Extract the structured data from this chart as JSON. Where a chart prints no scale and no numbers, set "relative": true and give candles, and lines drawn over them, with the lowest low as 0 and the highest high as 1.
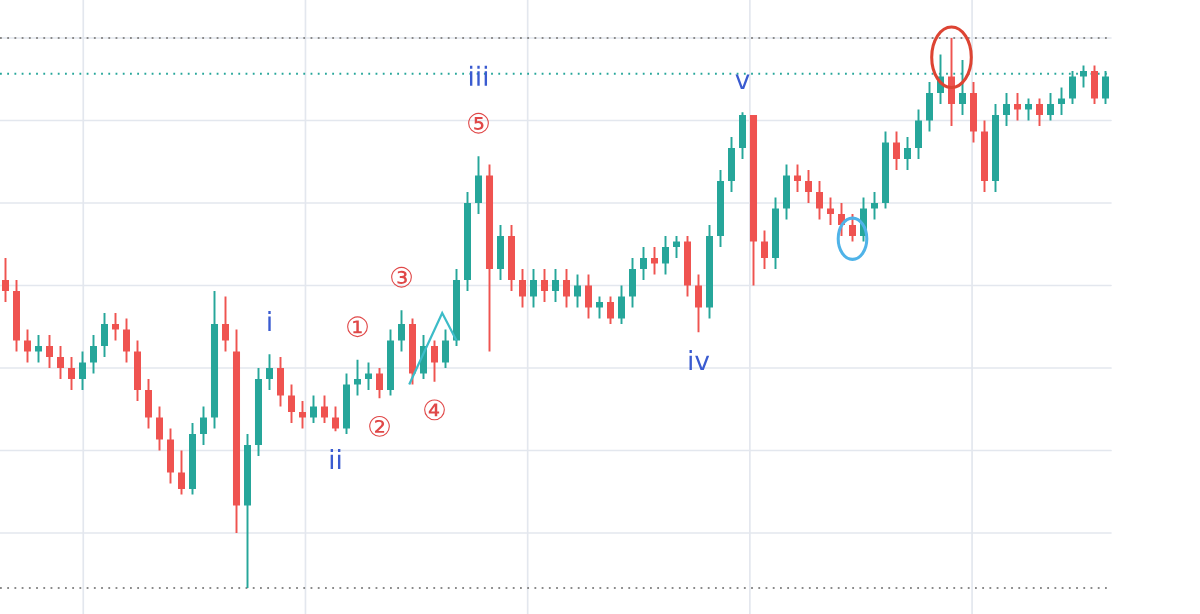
{
  "chart_data": {
    "type": "candlestick",
    "relative": true,
    "grid": true,
    "categories": [
      null,
      null,
      null,
      null,
      null,
      null,
      null,
      null,
      null,
      null,
      null,
      null,
      null,
      null,
      null,
      null,
      null,
      null,
      null,
      null,
      null,
      null,
      null,
      null,
      null,
      null,
      null,
      null,
      null,
      null,
      null,
      null,
      null,
      null,
      null,
      null,
      null,
      null,
      null,
      null,
      null,
      null,
      null,
      null,
      null,
      null,
      null,
      null,
      null,
      null,
      null,
      null,
      null,
      null,
      null,
      null,
      null,
      null,
      null,
      null,
      null,
      null,
      null,
      null,
      null,
      null,
      null,
      null,
      null,
      null,
      null,
      null,
      null,
      null,
      null,
      null,
      null,
      null,
      null,
      null,
      null,
      null,
      null,
      null,
      null,
      null,
      null,
      null,
      null,
      null,
      null,
      null,
      null,
      null,
      null,
      null,
      null,
      null,
      null,
      null,
      null
    ],
    "ohlc": [
      [
        0.56,
        0.6,
        0.52,
        0.54
      ],
      [
        0.54,
        0.56,
        0.43,
        0.45
      ],
      [
        0.45,
        0.47,
        0.41,
        0.43
      ],
      [
        0.43,
        0.46,
        0.41,
        0.44
      ],
      [
        0.44,
        0.46,
        0.4,
        0.42
      ],
      [
        0.42,
        0.44,
        0.38,
        0.4
      ],
      [
        0.4,
        0.42,
        0.36,
        0.38
      ],
      [
        0.38,
        0.43,
        0.36,
        0.41
      ],
      [
        0.41,
        0.46,
        0.39,
        0.44
      ],
      [
        0.44,
        0.5,
        0.42,
        0.48
      ],
      [
        0.48,
        0.5,
        0.45,
        0.47
      ],
      [
        0.47,
        0.49,
        0.41,
        0.43
      ],
      [
        0.43,
        0.45,
        0.34,
        0.36
      ],
      [
        0.36,
        0.38,
        0.29,
        0.31
      ],
      [
        0.31,
        0.33,
        0.25,
        0.27
      ],
      [
        0.27,
        0.29,
        0.19,
        0.21
      ],
      [
        0.21,
        0.25,
        0.17,
        0.18
      ],
      [
        0.18,
        0.3,
        0.17,
        0.28
      ],
      [
        0.28,
        0.33,
        0.26,
        0.31
      ],
      [
        0.31,
        0.54,
        0.29,
        0.48
      ],
      [
        0.48,
        0.53,
        0.43,
        0.45
      ],
      [
        0.43,
        0.47,
        0.1,
        0.15
      ],
      [
        0.15,
        0.28,
        0.0,
        0.26
      ],
      [
        0.26,
        0.4,
        0.24,
        0.38
      ],
      [
        0.38,
        0.425,
        0.36,
        0.4
      ],
      [
        0.4,
        0.42,
        0.33,
        0.35
      ],
      [
        0.35,
        0.37,
        0.3,
        0.32
      ],
      [
        0.32,
        0.34,
        0.29,
        0.31
      ],
      [
        0.31,
        0.35,
        0.3,
        0.33
      ],
      [
        0.33,
        0.35,
        0.3,
        0.31
      ],
      [
        0.31,
        0.33,
        0.285,
        0.29
      ],
      [
        0.29,
        0.39,
        0.28,
        0.37
      ],
      [
        0.37,
        0.415,
        0.35,
        0.38
      ],
      [
        0.38,
        0.41,
        0.36,
        0.39
      ],
      [
        0.39,
        0.4,
        0.345,
        0.36
      ],
      [
        0.36,
        0.47,
        0.35,
        0.45
      ],
      [
        0.45,
        0.505,
        0.43,
        0.48
      ],
      [
        0.48,
        0.49,
        0.37,
        0.39
      ],
      [
        0.39,
        0.46,
        0.38,
        0.44
      ],
      [
        0.44,
        0.45,
        0.375,
        0.41
      ],
      [
        0.41,
        0.47,
        0.4,
        0.45
      ],
      [
        0.45,
        0.58,
        0.44,
        0.56
      ],
      [
        0.56,
        0.72,
        0.54,
        0.7
      ],
      [
        0.7,
        0.785,
        0.68,
        0.75
      ],
      [
        0.75,
        0.77,
        0.43,
        0.58
      ],
      [
        0.58,
        0.66,
        0.56,
        0.64
      ],
      [
        0.64,
        0.66,
        0.54,
        0.56
      ],
      [
        0.56,
        0.58,
        0.51,
        0.53
      ],
      [
        0.53,
        0.58,
        0.51,
        0.56
      ],
      [
        0.56,
        0.58,
        0.52,
        0.54
      ],
      [
        0.54,
        0.58,
        0.52,
        0.56
      ],
      [
        0.56,
        0.58,
        0.51,
        0.53
      ],
      [
        0.53,
        0.57,
        0.51,
        0.55
      ],
      [
        0.55,
        0.57,
        0.49,
        0.51
      ],
      [
        0.51,
        0.53,
        0.49,
        0.52
      ],
      [
        0.52,
        0.53,
        0.48,
        0.49
      ],
      [
        0.49,
        0.55,
        0.48,
        0.53
      ],
      [
        0.53,
        0.6,
        0.51,
        0.58
      ],
      [
        0.58,
        0.62,
        0.56,
        0.6
      ],
      [
        0.6,
        0.62,
        0.57,
        0.59
      ],
      [
        0.59,
        0.64,
        0.57,
        0.62
      ],
      [
        0.62,
        0.64,
        0.6,
        0.63
      ],
      [
        0.63,
        0.64,
        0.53,
        0.55
      ],
      [
        0.55,
        0.57,
        0.465,
        0.51
      ],
      [
        0.51,
        0.66,
        0.49,
        0.64
      ],
      [
        0.64,
        0.76,
        0.62,
        0.74
      ],
      [
        0.74,
        0.82,
        0.72,
        0.8
      ],
      [
        0.8,
        0.865,
        0.78,
        0.86
      ],
      [
        0.86,
        0.86,
        0.55,
        0.63
      ],
      [
        0.63,
        0.65,
        0.58,
        0.6
      ],
      [
        0.6,
        0.71,
        0.58,
        0.69
      ],
      [
        0.69,
        0.77,
        0.67,
        0.75
      ],
      [
        0.75,
        0.77,
        0.72,
        0.74
      ],
      [
        0.74,
        0.76,
        0.7,
        0.72
      ],
      [
        0.72,
        0.74,
        0.67,
        0.69
      ],
      [
        0.69,
        0.71,
        0.66,
        0.68
      ],
      [
        0.68,
        0.7,
        0.64,
        0.66
      ],
      [
        0.66,
        0.68,
        0.63,
        0.64
      ],
      [
        0.64,
        0.71,
        0.63,
        0.69
      ],
      [
        0.69,
        0.72,
        0.67,
        0.7
      ],
      [
        0.7,
        0.83,
        0.69,
        0.81
      ],
      [
        0.81,
        0.83,
        0.76,
        0.78
      ],
      [
        0.78,
        0.82,
        0.76,
        0.8
      ],
      [
        0.8,
        0.87,
        0.78,
        0.85
      ],
      [
        0.85,
        0.92,
        0.83,
        0.9
      ],
      [
        0.9,
        0.97,
        0.88,
        0.93
      ],
      [
        0.93,
        1.0,
        0.84,
        0.88
      ],
      [
        0.88,
        0.96,
        0.86,
        0.9
      ],
      [
        0.9,
        0.92,
        0.81,
        0.83
      ],
      [
        0.83,
        0.85,
        0.72,
        0.74
      ],
      [
        0.74,
        0.88,
        0.72,
        0.86
      ],
      [
        0.86,
        0.9,
        0.84,
        0.88
      ],
      [
        0.88,
        0.9,
        0.85,
        0.87
      ],
      [
        0.87,
        0.89,
        0.85,
        0.88
      ],
      [
        0.88,
        0.89,
        0.84,
        0.86
      ],
      [
        0.86,
        0.9,
        0.85,
        0.88
      ],
      [
        0.88,
        0.91,
        0.86,
        0.89
      ],
      [
        0.89,
        0.94,
        0.88,
        0.93
      ],
      [
        0.93,
        0.95,
        0.91,
        0.94
      ],
      [
        0.94,
        0.95,
        0.88,
        0.89
      ],
      [
        0.89,
        0.94,
        0.88,
        0.93
      ]
    ],
    "ref_lines": [
      {
        "axis": "y",
        "value": 1.0,
        "color": "#8a8a8a",
        "line_style": "dotted"
      },
      {
        "axis": "y",
        "value": 0.935,
        "color": "#26a69a",
        "line_style": "dotted"
      },
      {
        "axis": "y",
        "value": 0.0,
        "color": "#8a8a8a",
        "line_style": "dotted"
      }
    ],
    "annotations": [
      {
        "text": "i",
        "y": 0.425
      },
      {
        "text": "ii",
        "y": 0.285
      },
      {
        "text": "①",
        "y": 0.415
      },
      {
        "text": "②",
        "y": 0.345
      },
      {
        "text": "③",
        "y": 0.505
      },
      {
        "text": "④",
        "y": 0.375
      },
      {
        "text": "⑤",
        "y": 0.785
      },
      {
        "text": "iii",
        "y": 0.785
      },
      {
        "text": "iv",
        "y": 0.465
      },
      {
        "text": "v",
        "y": 0.865
      }
    ]
  }
}
